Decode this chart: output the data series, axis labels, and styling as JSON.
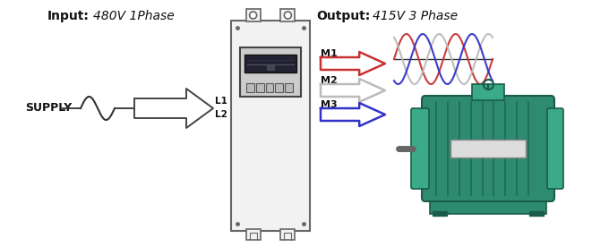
{
  "input_bold": "Input:",
  "input_italic": "480V 1Phase",
  "output_bold": "Output:",
  "output_italic": "415V 3 Phase",
  "supply_text": "SUPPLY",
  "m1_label": "M1",
  "m2_label": "M2",
  "m3_label": "M3",
  "l1_label": "L1",
  "l2_label": "L2",
  "arrow_red": "#c83232",
  "arrow_gray": "#bbbbbb",
  "arrow_blue": "#3232c8",
  "sine_red": "#c83232",
  "sine_blue": "#3232c8",
  "sine_gray": "#bbbbbb",
  "motor_teal": "#2e8b70",
  "motor_dark": "#1a5c4a",
  "motor_light": "#3aaa88",
  "bg_color": "#ffffff",
  "text_dark": "#111111",
  "vfd_face": "#f2f2f2",
  "vfd_edge": "#666666",
  "panel_face": "#cccccc",
  "screen_face": "#222233"
}
